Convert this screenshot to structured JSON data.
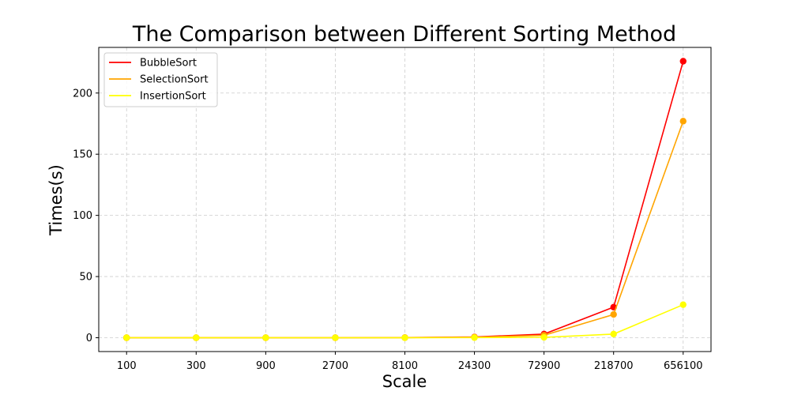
{
  "chart_data": {
    "type": "line",
    "title": "The Comparison between Different Sorting Method",
    "xlabel": "Scale",
    "ylabel": "Times(s)",
    "categories": [
      "100",
      "300",
      "900",
      "2700",
      "8100",
      "24300",
      "72900",
      "218700",
      "656100"
    ],
    "yticks": [
      "0",
      "50",
      "100",
      "150",
      "200"
    ],
    "ylim": [
      -11.3,
      237.3
    ],
    "grid": true,
    "legend_position": "top-left",
    "series": [
      {
        "name": "BubbleSort",
        "color": "#ff0000",
        "values": [
          0.0,
          0.0,
          0.0,
          0.0,
          0.1,
          0.6,
          3.0,
          25.0,
          226.0
        ]
      },
      {
        "name": "SelectionSort",
        "color": "#ffa500",
        "values": [
          0.0,
          0.0,
          0.0,
          0.0,
          0.05,
          0.4,
          2.0,
          19.0,
          177.0
        ]
      },
      {
        "name": "InsertionSort",
        "color": "#ffff00",
        "values": [
          0.0,
          0.0,
          0.0,
          0.0,
          0.0,
          0.1,
          0.3,
          3.0,
          27.0
        ]
      }
    ]
  }
}
